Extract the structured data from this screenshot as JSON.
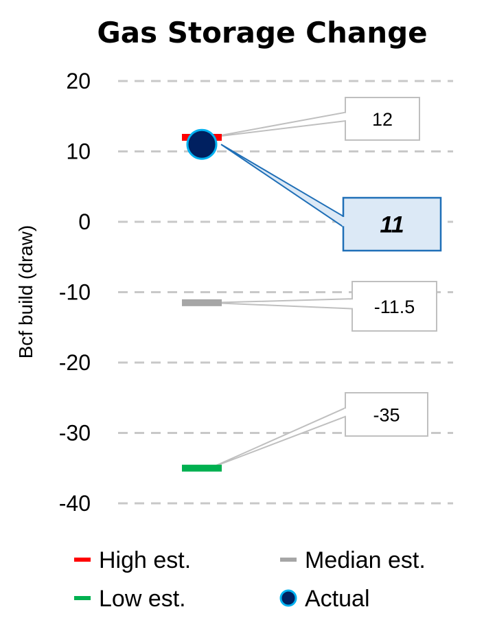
{
  "chart_data": {
    "type": "scatter",
    "title": "Gas Storage Change",
    "ylabel": "Bcf build (draw)",
    "ylim": [
      -40,
      20
    ],
    "yticks": [
      20,
      10,
      0,
      -10,
      -20,
      -30,
      -40
    ],
    "grid": true,
    "legend_position": "bottom",
    "series": [
      {
        "name": "High est.",
        "value": 12,
        "label": "12",
        "color": "#ff0000",
        "marker": "dash"
      },
      {
        "name": "Median est.",
        "value": -11.5,
        "label": "-11.5",
        "color": "#a6a6a6",
        "marker": "dash"
      },
      {
        "name": "Low est.",
        "value": -35,
        "label": "-35",
        "color": "#00b050",
        "marker": "dash"
      },
      {
        "name": "Actual",
        "value": 11,
        "label": "11",
        "color": "#002060",
        "edge_color": "#00b0f0",
        "marker": "circle"
      }
    ]
  }
}
